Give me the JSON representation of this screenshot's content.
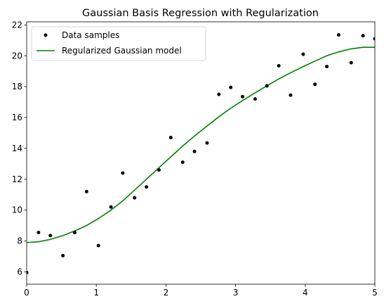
{
  "chart_data": {
    "type": "line",
    "title": "Gaussian Basis Regression with Regularization",
    "xlabel": "",
    "ylabel": "",
    "xlim": [
      0,
      5
    ],
    "ylim": [
      5.2,
      22.2
    ],
    "xticks": [
      0,
      1,
      2,
      3,
      4,
      5
    ],
    "yticks": [
      6,
      8,
      10,
      12,
      14,
      16,
      18,
      20,
      22
    ],
    "grid": false,
    "legend_position": "top-left",
    "legend": [
      {
        "name": "Data samples",
        "marker": "dot",
        "color": "#000000"
      },
      {
        "name": "Regularized Gaussian model",
        "marker": "line",
        "color": "#008000"
      }
    ],
    "series": [
      {
        "name": "Data samples",
        "kind": "scatter",
        "color": "#000000",
        "x": [
          0.0,
          0.17,
          0.34,
          0.52,
          0.69,
          0.86,
          1.03,
          1.21,
          1.38,
          1.55,
          1.72,
          1.9,
          2.07,
          2.24,
          2.41,
          2.59,
          2.76,
          2.93,
          3.1,
          3.28,
          3.45,
          3.62,
          3.79,
          3.97,
          4.14,
          4.31,
          4.48,
          4.66,
          4.83,
          5.0
        ],
        "y": [
          5.95,
          8.55,
          8.35,
          7.05,
          8.55,
          11.2,
          7.7,
          10.2,
          12.4,
          10.8,
          11.5,
          12.6,
          14.7,
          13.1,
          13.8,
          14.35,
          17.5,
          17.95,
          17.35,
          17.2,
          18.05,
          19.35,
          17.45,
          20.1,
          18.15,
          19.3,
          21.35,
          19.55,
          21.3,
          21.1
        ]
      },
      {
        "name": "Regularized Gaussian model",
        "kind": "line",
        "color": "#008000",
        "x": [
          0.0,
          0.17,
          0.34,
          0.52,
          0.69,
          0.86,
          1.03,
          1.21,
          1.38,
          1.55,
          1.72,
          1.9,
          2.07,
          2.24,
          2.41,
          2.59,
          2.76,
          2.93,
          3.1,
          3.28,
          3.45,
          3.62,
          3.79,
          3.97,
          4.14,
          4.31,
          4.48,
          4.66,
          4.83,
          5.0
        ],
        "y": [
          7.9,
          7.95,
          8.1,
          8.35,
          8.65,
          9.0,
          9.45,
          10.0,
          10.6,
          11.3,
          12.0,
          12.75,
          13.45,
          14.15,
          14.8,
          15.45,
          16.05,
          16.6,
          17.1,
          17.6,
          18.05,
          18.5,
          18.9,
          19.3,
          19.65,
          20.0,
          20.25,
          20.45,
          20.55,
          20.55
        ]
      }
    ]
  }
}
